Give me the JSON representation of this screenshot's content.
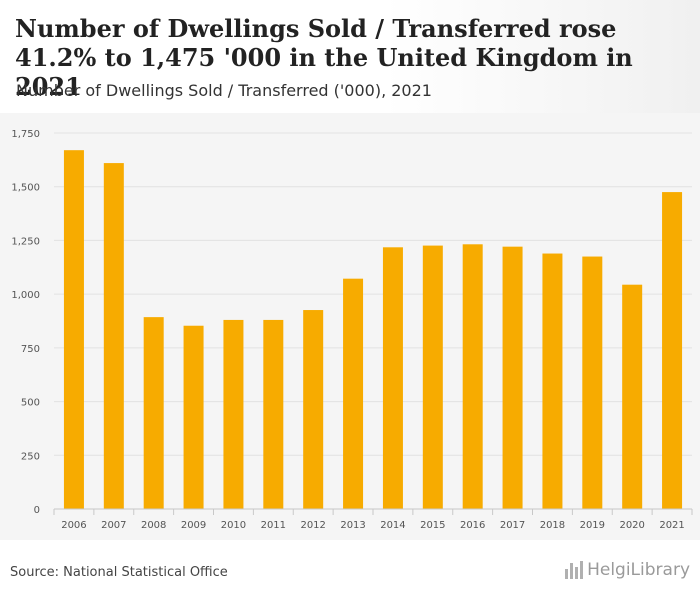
{
  "header": {
    "title": "Number of Dwellings Sold / Transferred rose 41.2% to 1,475 '000 in the United Kingdom in 2021",
    "subtitle": "Number of Dwellings Sold / Transferred ('000), 2021"
  },
  "footer": {
    "source": "Source: National Statistical Office",
    "logo_text": "HelgiLibrary"
  },
  "colors": {
    "bar": "#f7ab00",
    "grid": "#e2e2e2",
    "plot_bg": "#f5f5f5"
  },
  "chart_data": {
    "type": "bar",
    "categories": [
      "2006",
      "2007",
      "2008",
      "2009",
      "2010",
      "2011",
      "2012",
      "2013",
      "2014",
      "2015",
      "2016",
      "2017",
      "2018",
      "2019",
      "2020",
      "2021"
    ],
    "values": [
      1670,
      1610,
      893,
      853,
      880,
      880,
      926,
      1072,
      1218,
      1226,
      1232,
      1221,
      1189,
      1175,
      1044,
      1475
    ],
    "ylim": [
      0,
      1750
    ],
    "yticks": [
      0,
      250,
      500,
      750,
      1000,
      1250,
      1500,
      1750
    ],
    "ytick_labels": [
      "0",
      "250",
      "500",
      "750",
      "1,000",
      "1,250",
      "1,500",
      "1,750"
    ],
    "grid": true
  }
}
